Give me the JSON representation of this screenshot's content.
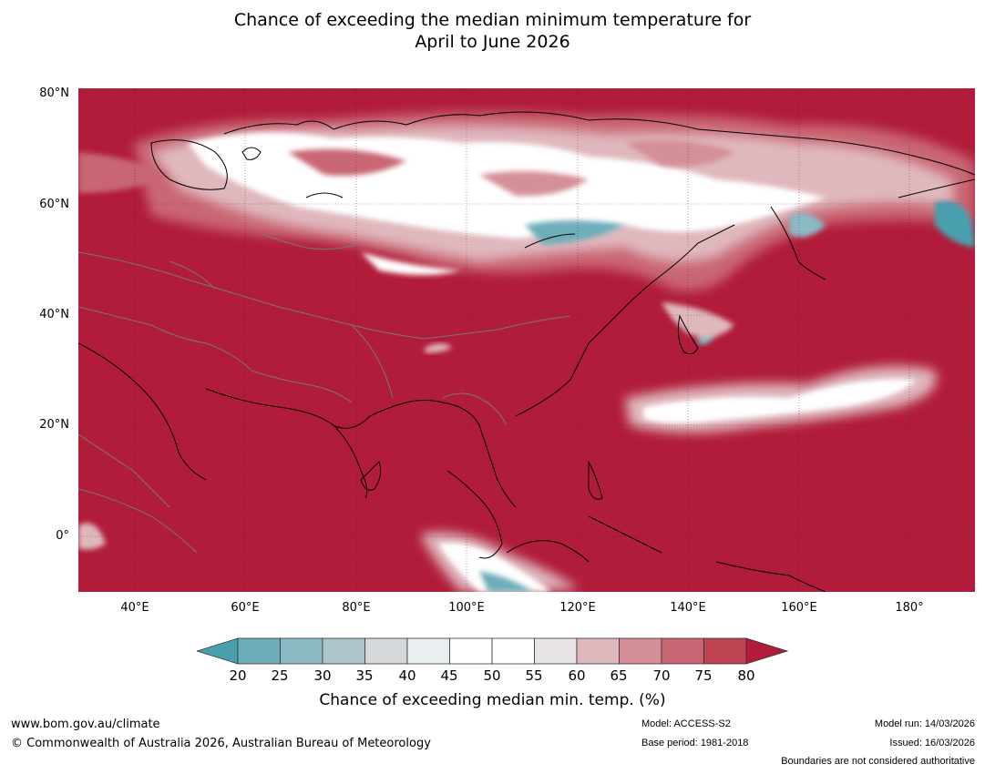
{
  "title": {
    "line1": "Chance of exceeding the median minimum temperature for",
    "line2": "April to June 2026"
  },
  "map": {
    "lat_labels": [
      "80°N",
      "60°N",
      "40°N",
      "20°N",
      "0°"
    ],
    "lon_labels": [
      "40°E",
      "60°E",
      "80°E",
      "100°E",
      "120°E",
      "140°E",
      "160°E",
      "180°"
    ],
    "base_color": "#b01c39"
  },
  "colorbar": {
    "ticks": [
      "20",
      "25",
      "30",
      "35",
      "40",
      "45",
      "50",
      "55",
      "60",
      "65",
      "70",
      "75",
      "80"
    ],
    "colors": [
      "#4a9fae",
      "#6eadba",
      "#8bbac5",
      "#adc6cc",
      "#d4d8da",
      "#e9eff1",
      "#ffffff",
      "#ffffff",
      "#e9e4e5",
      "#dfb8bd",
      "#d58f98",
      "#c96673",
      "#bf4452",
      "#b01c39"
    ],
    "label": "Chance of exceeding median min. temp. (%)"
  },
  "footer": {
    "url": "www.bom.gov.au/climate",
    "copyright": "© Commonwealth of Australia 2026, Australian Bureau of Meteorology",
    "model": "Model: ACCESS-S2",
    "base_period": "Base period: 1981-2018",
    "model_run": "Model run: 14/03/2026",
    "issued": "Issued: 16/03/2026",
    "boundaries": "Boundaries are not considered authoritative"
  }
}
